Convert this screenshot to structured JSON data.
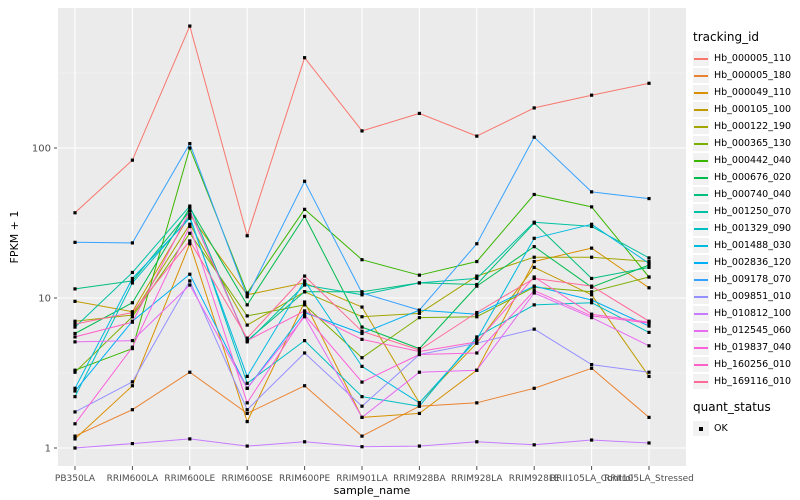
{
  "legend": {
    "tracking_title": "tracking_id",
    "quant_title": "quant_status",
    "quant_ok": "OK"
  },
  "chart_data": {
    "type": "line",
    "title": "",
    "xlabel": "sample_name",
    "ylabel": "FPKM + 1",
    "y_scale": "log10",
    "y_ticks": [
      1,
      10,
      100
    ],
    "y_minor_breaks": [
      3.1623,
      31.623,
      316.23
    ],
    "ylim": [
      0.95,
      830
    ],
    "grid": "white major and minor gridlines on grey panel",
    "panel_bg": "#EBEBEB",
    "gridline_color": "#FFFFFF",
    "tick_text_color": "#4D4D4D",
    "point_color": "#000000",
    "legend_position": "right",
    "quant_status": "OK",
    "categories": [
      "PB350LA",
      "RRIM600LA",
      "RRIM600LE",
      "RRIM600SE",
      "RRIM600PE",
      "RRIM901LA",
      "RRIM928BA",
      "RRIM928LA",
      "RRIM928LE",
      "RRII105LA_Control",
      "RRII105LA_Stressed"
    ],
    "series": [
      {
        "name": "Hb_000005_110",
        "color": "#F8766D",
        "values": [
          37,
          83,
          650,
          26,
          400,
          130,
          170,
          120,
          185,
          225,
          270
        ]
      },
      {
        "name": "Hb_000005_180",
        "color": "#EA8331",
        "values": [
          1.2,
          1.8,
          3.2,
          1.7,
          2.6,
          1.2,
          1.9,
          2.0,
          2.5,
          3.4,
          1.6
        ]
      },
      {
        "name": "Hb_000049_110",
        "color": "#D89000",
        "values": [
          1.15,
          2.6,
          23,
          1.5,
          9.4,
          1.6,
          1.7,
          3.3,
          17.5,
          21.5,
          11.7
        ]
      },
      {
        "name": "Hb_000105_100",
        "color": "#C09B00",
        "values": [
          9.5,
          8.1,
          36,
          10.5,
          12.6,
          8.7,
          2.0,
          5.0,
          16,
          10.5,
          3.0
        ]
      },
      {
        "name": "Hb_000122_190",
        "color": "#A3A500",
        "values": [
          7.0,
          7.7,
          31,
          6.6,
          11,
          7.5,
          7.9,
          14,
          18.7,
          18.7,
          17.5
        ]
      },
      {
        "name": "Hb_000365_130",
        "color": "#7CAE00",
        "values": [
          3.2,
          7.5,
          27,
          7.6,
          9.0,
          4.0,
          7.4,
          7.5,
          11.8,
          11,
          13.8
        ]
      },
      {
        "name": "Hb_000442_040",
        "color": "#39B600",
        "values": [
          3.3,
          4.6,
          100,
          10.8,
          39,
          18,
          14.2,
          17.5,
          49,
          40.5,
          13.8
        ]
      },
      {
        "name": "Hb_000676_020",
        "color": "#00BB4E",
        "values": [
          5.8,
          9.3,
          40,
          9.0,
          35,
          6.4,
          4.6,
          12,
          22,
          11.8,
          16.6
        ]
      },
      {
        "name": "Hb_000740_040",
        "color": "#00BF7D",
        "values": [
          11.5,
          13,
          38,
          5.2,
          11,
          11,
          12.6,
          12.3,
          31.6,
          13.5,
          16
        ]
      },
      {
        "name": "Hb_001250_070",
        "color": "#00C1A3",
        "values": [
          6.4,
          14.8,
          41,
          5.1,
          12.2,
          10.5,
          12.6,
          13.5,
          32,
          30,
          18.5
        ]
      },
      {
        "name": "Hb_001329_090",
        "color": "#00BFC4",
        "values": [
          2.2,
          12.6,
          35,
          2.7,
          5.2,
          2.2,
          1.9,
          5.5,
          9.0,
          9.3,
          5.9
        ]
      },
      {
        "name": "Hb_001488_030",
        "color": "#00BAE0",
        "values": [
          2.5,
          13.5,
          34,
          3.0,
          13,
          3.5,
          2.0,
          5.3,
          25,
          31,
          17
        ]
      },
      {
        "name": "Hb_002836_120",
        "color": "#00B0F6",
        "values": [
          2.4,
          7.0,
          14.4,
          2.5,
          8.0,
          5.8,
          8.3,
          7.8,
          12,
          9.7,
          6.5
        ]
      },
      {
        "name": "Hb_009178_070",
        "color": "#35A2FF",
        "values": [
          23.5,
          23.3,
          107,
          10.2,
          60,
          10.8,
          8.3,
          23,
          118,
          51,
          46
        ]
      },
      {
        "name": "Hb_009851_010",
        "color": "#9590FF",
        "values": [
          1.74,
          2.76,
          13,
          1.8,
          4.3,
          1.9,
          4.2,
          5.0,
          6.2,
          3.6,
          3.2
        ]
      },
      {
        "name": "Hb_010812_100",
        "color": "#C77CFF",
        "values": [
          1.0,
          1.07,
          1.15,
          1.03,
          1.1,
          1.02,
          1.03,
          1.1,
          1.05,
          1.13,
          1.08
        ]
      },
      {
        "name": "Hb_012545_060",
        "color": "#E76BF3",
        "values": [
          5.1,
          5.2,
          12.2,
          2.5,
          7.5,
          1.6,
          3.2,
          3.3,
          10.8,
          7.4,
          4.8
        ]
      },
      {
        "name": "Hb_019837_040",
        "color": "#FA62DB",
        "values": [
          1.45,
          4.7,
          30,
          2.0,
          7.7,
          2.75,
          4.2,
          4.3,
          11.2,
          7.6,
          6.8
        ]
      },
      {
        "name": "Hb_160256_010",
        "color": "#FF61C9",
        "values": [
          5.5,
          6.9,
          38,
          5.2,
          8.2,
          5.3,
          4.4,
          5.1,
          13.8,
          7.8,
          6.9
        ]
      },
      {
        "name": "Hb_169116_010",
        "color": "#FF6A98",
        "values": [
          6.7,
          8.0,
          24,
          5.4,
          14,
          6.0,
          4.5,
          8.0,
          13.5,
          12,
          7.0
        ]
      }
    ]
  }
}
